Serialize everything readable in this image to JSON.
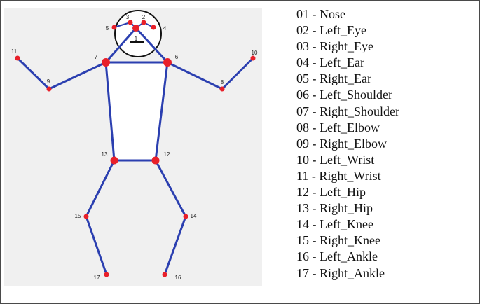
{
  "colors": {
    "bone": "#2b3fb0",
    "joint": "#e8202a",
    "head_outline": "#111111",
    "torso_fill": "#ffffff",
    "background": "#f0f0f0"
  },
  "keypoints": [
    {
      "id": "1",
      "name": "Nose"
    },
    {
      "id": "2",
      "name": "Left_Eye"
    },
    {
      "id": "3",
      "name": "Right_Eye"
    },
    {
      "id": "4",
      "name": "Left_Ear"
    },
    {
      "id": "5",
      "name": "Right_Ear"
    },
    {
      "id": "6",
      "name": "Left_Shoulder"
    },
    {
      "id": "7",
      "name": "Right_Shoulder"
    },
    {
      "id": "8",
      "name": "Left_Elbow"
    },
    {
      "id": "9",
      "name": "Right_Elbow"
    },
    {
      "id": "10",
      "name": "Left_Wrist"
    },
    {
      "id": "11",
      "name": "Right_Wrist"
    },
    {
      "id": "12",
      "name": "Left_Hip"
    },
    {
      "id": "13",
      "name": "Right_Hip"
    },
    {
      "id": "14",
      "name": "Left_Knee"
    },
    {
      "id": "15",
      "name": "Right_Knee"
    },
    {
      "id": "16",
      "name": "Left_Ankle"
    },
    {
      "id": "17",
      "name": "Right_Ankle"
    }
  ],
  "legend": [
    "01 - Nose",
    "02 - Left_Eye",
    "03 - Right_Eye",
    "04 - Left_Ear",
    "05 - Right_Ear",
    "06 - Left_Shoulder",
    "07 - Right_Shoulder",
    "08 - Left_Elbow",
    "09 - Right_Elbow",
    "10 - Left_Wrist",
    "11 - Right_Wrist",
    "12 - Left_Hip",
    "13 - Right_Hip",
    "14 - Left_Knee",
    "15 - Right_Knee",
    "16 - Left_Ankle",
    "17 - Right_Ankle"
  ]
}
